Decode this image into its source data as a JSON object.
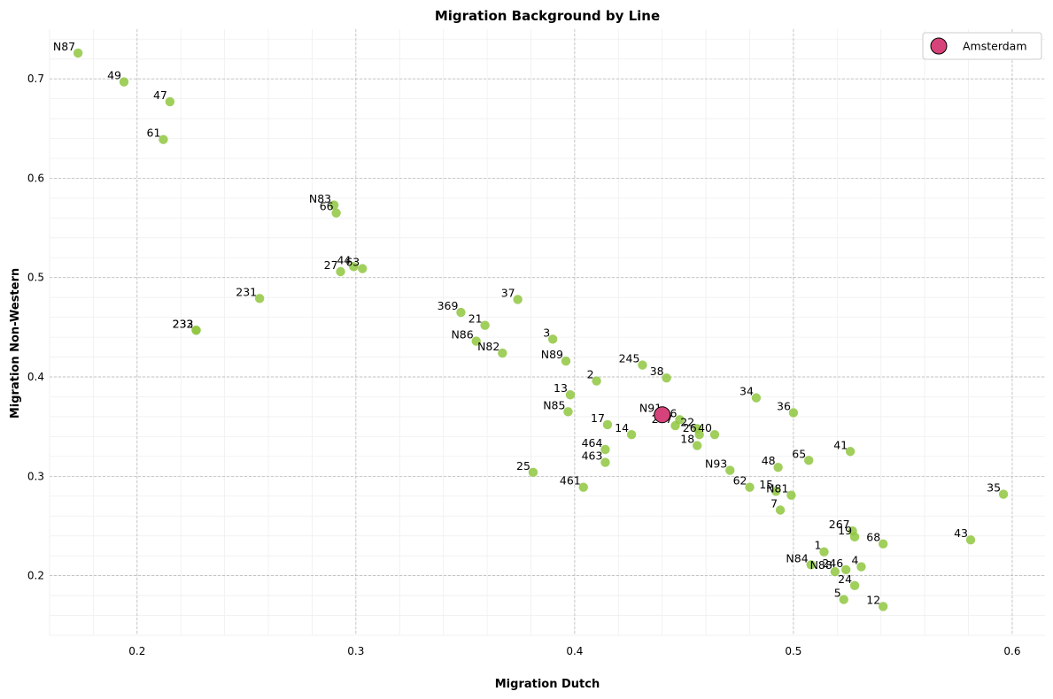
{
  "chart_data": {
    "type": "scatter",
    "title": "Migration Background by Line",
    "xlabel": "Migration Dutch",
    "ylabel": "Migration Non-Western",
    "xlim": [
      0.16,
      0.615
    ],
    "ylim": [
      0.14,
      0.75
    ],
    "xticks": [
      0.2,
      0.3,
      0.4,
      0.5,
      0.6
    ],
    "yticks": [
      0.2,
      0.3,
      0.4,
      0.5,
      0.6,
      0.7
    ],
    "xtick_labels": [
      "0.2",
      "0.3",
      "0.4",
      "0.5",
      "0.6"
    ],
    "ytick_labels": [
      "0.2",
      "0.3",
      "0.4",
      "0.5",
      "0.6",
      "0.7"
    ],
    "grid": true,
    "legend_position": "top-right",
    "point_color": "#8fc740",
    "highlight_color": "#d6437a",
    "points": [
      {
        "label": "N87",
        "x": 0.173,
        "y": 0.726
      },
      {
        "label": "49",
        "x": 0.194,
        "y": 0.697
      },
      {
        "label": "47",
        "x": 0.215,
        "y": 0.677
      },
      {
        "label": "61",
        "x": 0.212,
        "y": 0.639
      },
      {
        "label": "N83",
        "x": 0.29,
        "y": 0.573
      },
      {
        "label": "66",
        "x": 0.291,
        "y": 0.565
      },
      {
        "label": "27",
        "x": 0.293,
        "y": 0.506
      },
      {
        "label": "44",
        "x": 0.299,
        "y": 0.511
      },
      {
        "label": "63",
        "x": 0.303,
        "y": 0.509
      },
      {
        "label": "231",
        "x": 0.256,
        "y": 0.479
      },
      {
        "label": "232",
        "x": 0.227,
        "y": 0.447
      },
      {
        "label": "233",
        "x": 0.227,
        "y": 0.447
      },
      {
        "label": "369",
        "x": 0.348,
        "y": 0.465
      },
      {
        "label": "37",
        "x": 0.374,
        "y": 0.478
      },
      {
        "label": "21",
        "x": 0.359,
        "y": 0.452
      },
      {
        "label": "N86",
        "x": 0.355,
        "y": 0.436
      },
      {
        "label": "N82",
        "x": 0.367,
        "y": 0.424
      },
      {
        "label": "3",
        "x": 0.39,
        "y": 0.438
      },
      {
        "label": "N89",
        "x": 0.396,
        "y": 0.416
      },
      {
        "label": "245",
        "x": 0.431,
        "y": 0.412
      },
      {
        "label": "38",
        "x": 0.442,
        "y": 0.399
      },
      {
        "label": "2",
        "x": 0.41,
        "y": 0.396
      },
      {
        "label": "13",
        "x": 0.398,
        "y": 0.382
      },
      {
        "label": "N85",
        "x": 0.397,
        "y": 0.365
      },
      {
        "label": "34",
        "x": 0.483,
        "y": 0.379
      },
      {
        "label": "36",
        "x": 0.5,
        "y": 0.364
      },
      {
        "label": "N91",
        "x": 0.441,
        "y": 0.362
      },
      {
        "label": "26",
        "x": 0.448,
        "y": 0.357
      },
      {
        "label": "247",
        "x": 0.446,
        "y": 0.351
      },
      {
        "label": "22",
        "x": 0.456,
        "y": 0.348
      },
      {
        "label": "26",
        "x": 0.457,
        "y": 0.342
      },
      {
        "label": "40",
        "x": 0.464,
        "y": 0.342
      },
      {
        "label": "17",
        "x": 0.415,
        "y": 0.352
      },
      {
        "label": "14",
        "x": 0.426,
        "y": 0.342
      },
      {
        "label": "18",
        "x": 0.456,
        "y": 0.331
      },
      {
        "label": "464",
        "x": 0.414,
        "y": 0.327
      },
      {
        "label": "463",
        "x": 0.414,
        "y": 0.314
      },
      {
        "label": "41",
        "x": 0.526,
        "y": 0.325
      },
      {
        "label": "65",
        "x": 0.507,
        "y": 0.316
      },
      {
        "label": "48",
        "x": 0.493,
        "y": 0.309
      },
      {
        "label": "N93",
        "x": 0.471,
        "y": 0.306
      },
      {
        "label": "25",
        "x": 0.381,
        "y": 0.304
      },
      {
        "label": "461",
        "x": 0.404,
        "y": 0.289
      },
      {
        "label": "62",
        "x": 0.48,
        "y": 0.289
      },
      {
        "label": "15",
        "x": 0.492,
        "y": 0.285
      },
      {
        "label": "N81",
        "x": 0.499,
        "y": 0.281
      },
      {
        "label": "7",
        "x": 0.494,
        "y": 0.266
      },
      {
        "label": "35",
        "x": 0.596,
        "y": 0.282
      },
      {
        "label": "267",
        "x": 0.527,
        "y": 0.245
      },
      {
        "label": "19",
        "x": 0.528,
        "y": 0.239
      },
      {
        "label": "68",
        "x": 0.541,
        "y": 0.232
      },
      {
        "label": "43",
        "x": 0.581,
        "y": 0.236
      },
      {
        "label": "1",
        "x": 0.514,
        "y": 0.224
      },
      {
        "label": "N84",
        "x": 0.508,
        "y": 0.211
      },
      {
        "label": "N88",
        "x": 0.519,
        "y": 0.204
      },
      {
        "label": "246",
        "x": 0.524,
        "y": 0.206
      },
      {
        "label": "4",
        "x": 0.531,
        "y": 0.209
      },
      {
        "label": "24",
        "x": 0.528,
        "y": 0.19
      },
      {
        "label": "5",
        "x": 0.523,
        "y": 0.176
      },
      {
        "label": "12",
        "x": 0.541,
        "y": 0.169
      }
    ],
    "highlight": {
      "label": "N91",
      "x": 0.44,
      "y": 0.362,
      "legend": "Amsterdam"
    }
  }
}
